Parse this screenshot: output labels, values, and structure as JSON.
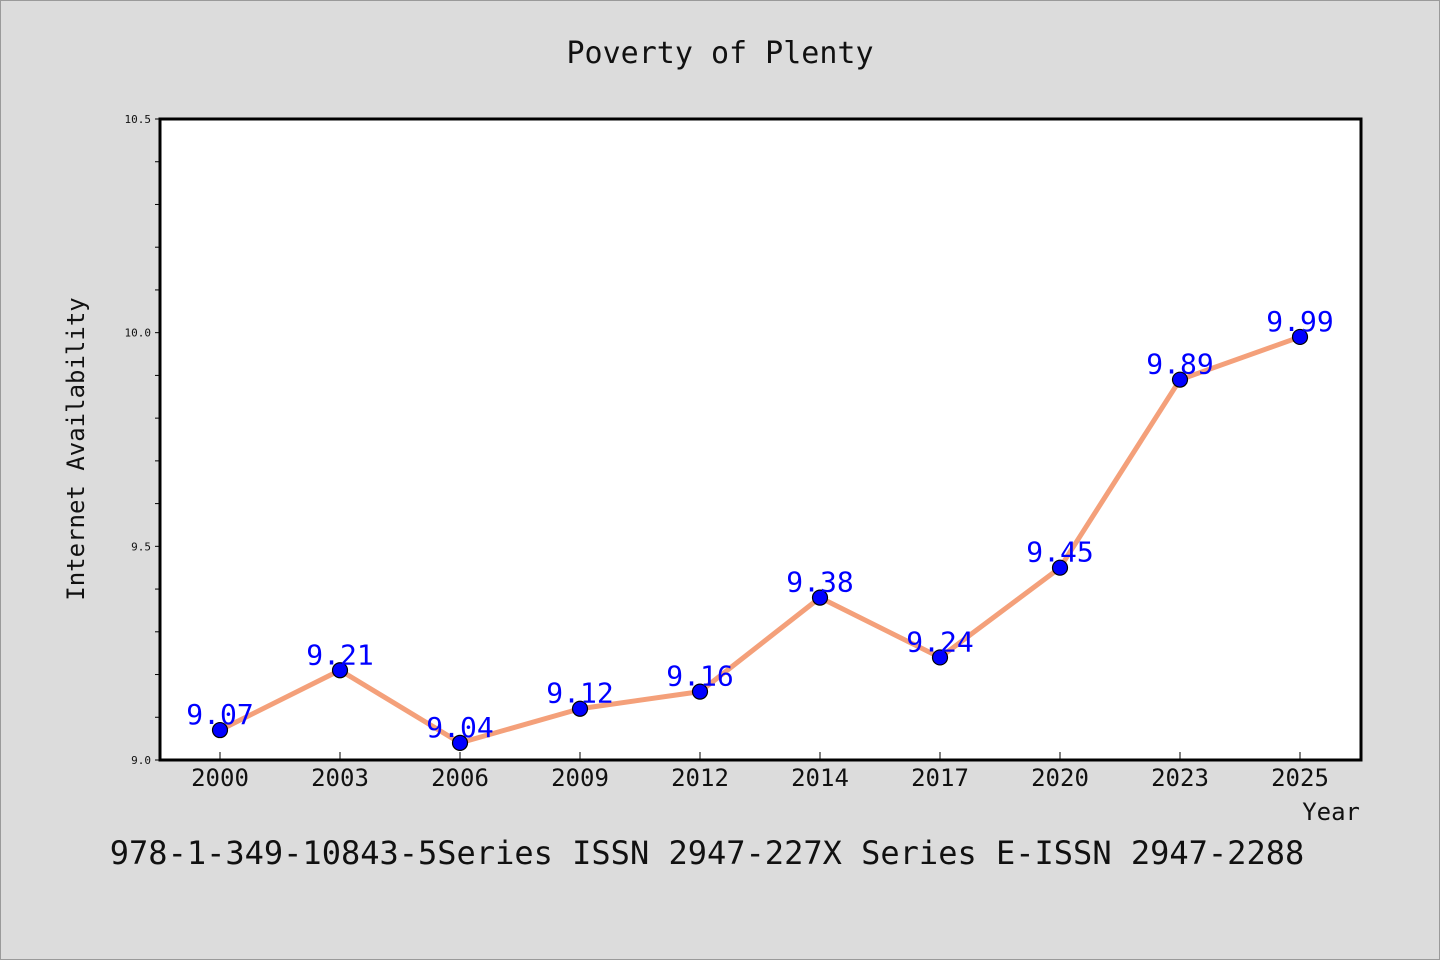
{
  "chart_data": {
    "type": "line",
    "title": "Poverty of Plenty",
    "xlabel": "Year",
    "ylabel": "Internet Availability",
    "categories": [
      "2000",
      "2003",
      "2006",
      "2009",
      "2012",
      "2014",
      "2017",
      "2020",
      "2023",
      "2025"
    ],
    "series": [
      {
        "values": [
          9.07,
          9.21,
          9.04,
          9.12,
          9.16,
          9.38,
          9.24,
          9.45,
          9.89,
          9.99
        ],
        "line_color": "#f4a07a",
        "marker_color": "#0000ff"
      }
    ],
    "data_labels": [
      "9.07",
      "9.21",
      "9.04",
      "9.12",
      "9.16",
      "9.38",
      "9.24",
      "9.45",
      "9.89",
      "9.99"
    ],
    "ylim": [
      9.0,
      10.5
    ],
    "y_ticks": [
      "9.0",
      "9.5",
      "10.0",
      "10.5"
    ],
    "y_tick_values": [
      9.0,
      9.5,
      10.0,
      10.5
    ],
    "grid": false,
    "legend": "none"
  },
  "footnote": "978-1-349-10843-5Series ISSN 2947-227X Series E-ISSN 2947-2288",
  "colors": {
    "background": "#dcdcdc",
    "plot_background": "#ffffff",
    "data_label": "#0000ff"
  }
}
